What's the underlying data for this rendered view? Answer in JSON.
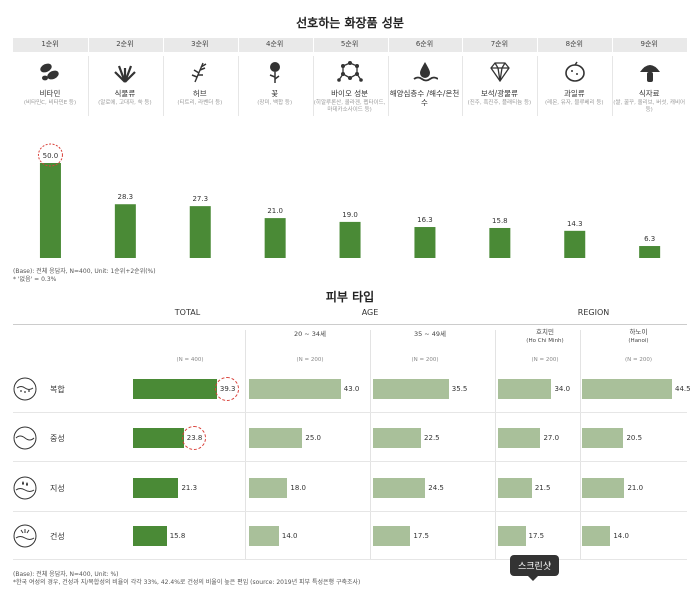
{
  "title1": "선호하는 화장품 성분",
  "ranks": [
    "1순위",
    "2순위",
    "3순위",
    "4순위",
    "5순위",
    "6순위",
    "7순위",
    "8순위",
    "9순위"
  ],
  "ingredients": [
    {
      "name": "비타민",
      "sub": "(비타민C, 비타민E 등)",
      "icon": "vitamin-pills-icon"
    },
    {
      "name": "식물류",
      "sub": "(알로에, 고대자, 쑥 등)",
      "icon": "plant-icon"
    },
    {
      "name": "허브",
      "sub": "(티트리, 라벤더 등)",
      "icon": "herb-icon"
    },
    {
      "name": "꽃",
      "sub": "(장미, 백합 등)",
      "icon": "rose-icon"
    },
    {
      "name": "바이오 성분",
      "sub": "(히알루론산, 콜라겐, 펩타이드, 마데카소사이드 등)",
      "icon": "molecule-icon"
    },
    {
      "name": "해양심층수 /해수/온천수",
      "sub": "",
      "icon": "water-drop-icon"
    },
    {
      "name": "보석/광물류",
      "sub": "(진주, 흑진주, 플래티늄 등)",
      "icon": "diamond-icon"
    },
    {
      "name": "과일류",
      "sub": "(레몬, 유자, 블루베리 등)",
      "icon": "lemon-icon"
    },
    {
      "name": "식자료",
      "sub": "(쌀, 꿀꾸, 올리브, 버섯, 캐비어 등)",
      "icon": "mushroom-icon"
    }
  ],
  "chart_data": [
    {
      "type": "bar",
      "categories": [
        "비타민",
        "식물류",
        "허브",
        "꽃",
        "바이오 성분",
        "해양심층수/해수/온천수",
        "보석/광물류",
        "과일류",
        "식자료"
      ],
      "values": [
        50.0,
        28.3,
        27.3,
        21.0,
        19.0,
        16.3,
        15.8,
        14.3,
        6.3
      ],
      "labels": [
        "50.0",
        "28.3",
        "27.3",
        "21.0",
        "19.0",
        "16.3",
        "15.8",
        "14.3",
        "6.3"
      ],
      "highlight_index": 0,
      "color": "#4a8a36"
    },
    {
      "type": "bar",
      "orientation": "horizontal",
      "title": "피부 타입",
      "categories": [
        "복합",
        "중성",
        "지성",
        "건성"
      ],
      "series": [
        {
          "name": "TOTAL",
          "values": [
            39.3,
            23.8,
            21.3,
            15.8
          ]
        },
        {
          "name": "20 ~ 34세",
          "values": [
            43.0,
            25.0,
            18.0,
            14.0
          ]
        },
        {
          "name": "35 ~ 49세",
          "values": [
            35.5,
            22.5,
            24.5,
            17.5
          ]
        },
        {
          "name": "호치민",
          "values": [
            34.0,
            27.0,
            21.5,
            17.5
          ]
        },
        {
          "name": "하노이",
          "values": [
            44.5,
            20.5,
            21.0,
            14.0
          ]
        }
      ]
    }
  ],
  "notes1": [
    "(Base): 전체 응답자, N=400, Unit: 1순위+2순위(%)",
    "* '없음' = 0.3%"
  ],
  "title2": "피부 타입",
  "groups": {
    "total": "TOTAL",
    "age": "AGE",
    "region": "REGION"
  },
  "subheaders": {
    "age1": "20 ~ 34세",
    "age2": "35 ~ 49세",
    "hcm": "호치민",
    "hcm_en": "(Ho Chi Minh)",
    "hanoi": "하노이",
    "hanoi_en": "(Hanoi)"
  },
  "nlabels": [
    "(N = 400)",
    "(N = 200)",
    "(N = 200)",
    "(N = 200)",
    "(N = 200)"
  ],
  "skin_rows": [
    {
      "label": "복합",
      "icon": "combination-skin-icon",
      "values": [
        "39.3",
        "43.0",
        "35.5",
        "34.0",
        "44.5"
      ]
    },
    {
      "label": "중성",
      "icon": "normal-skin-icon",
      "values": [
        "23.8",
        "25.0",
        "22.5",
        "27.0",
        "20.5"
      ]
    },
    {
      "label": "지성",
      "icon": "oily-skin-icon",
      "values": [
        "21.3",
        "18.0",
        "24.5",
        "21.5",
        "21.0"
      ]
    },
    {
      "label": "건성",
      "icon": "dry-skin-icon",
      "values": [
        "15.8",
        "14.0",
        "17.5",
        "17.5",
        "14.0"
      ]
    }
  ],
  "notes2": [
    "(Base): 전체 응답자, N=400, Unit: %)",
    "*한국 여성의 경우, 건성과 지/복합성의 비율이 각각 33%, 42.4%로 건성의 비율이 높은 편임 (source: 2019년 피부 특성은행 구축조사)"
  ],
  "tooltip": "스크린샷",
  "colors": {
    "dark_green": "#4a8a36",
    "light_green": "#a9c09a",
    "highlight": "#d9413a"
  }
}
